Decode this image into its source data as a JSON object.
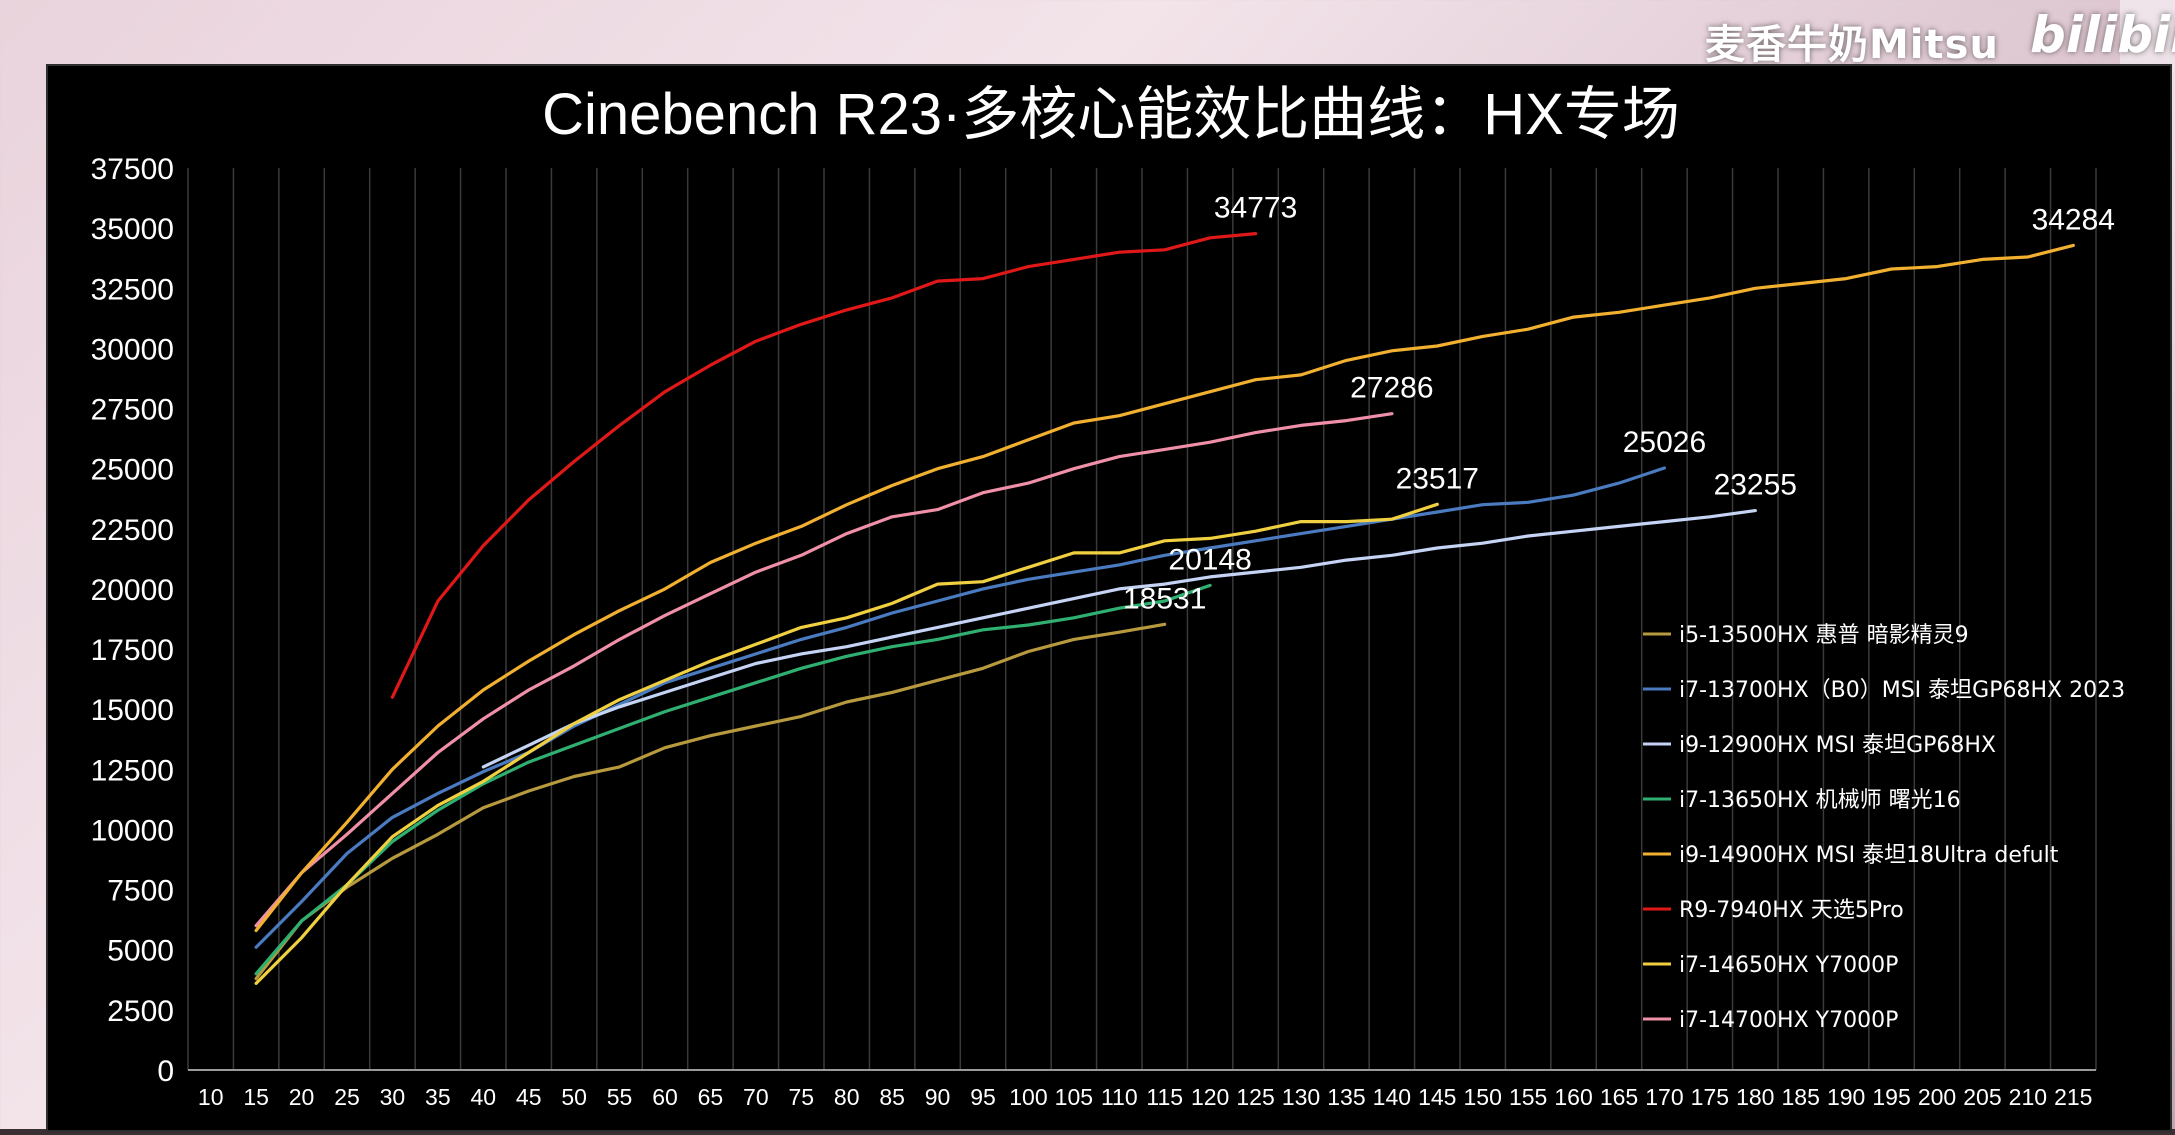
{
  "watermark": {
    "channel": "麦香牛奶Mitsu",
    "brand": "bilibili"
  },
  "chart_data": {
    "type": "line",
    "title": "Cinebench R23·多核心能效比曲线：HX专场",
    "xlabel": "",
    "ylabel": "",
    "xlim": [
      10,
      215
    ],
    "ylim": [
      0,
      37500
    ],
    "x_ticks": [
      10,
      15,
      20,
      25,
      30,
      35,
      40,
      45,
      50,
      55,
      60,
      65,
      70,
      75,
      80,
      85,
      90,
      95,
      100,
      105,
      110,
      115,
      120,
      125,
      130,
      135,
      140,
      145,
      150,
      155,
      160,
      165,
      170,
      175,
      180,
      185,
      190,
      195,
      200,
      205,
      210,
      215
    ],
    "y_ticks": [
      0,
      2500,
      5000,
      7500,
      10000,
      12500,
      15000,
      17500,
      20000,
      22500,
      25000,
      27500,
      30000,
      32500,
      35000,
      37500
    ],
    "grid": "vertical",
    "legend_position": "right",
    "series": [
      {
        "name": "i5-13500HX 惠普 暗影精灵9",
        "color": "#b89a3e",
        "x": [
          15,
          20,
          25,
          30,
          35,
          40,
          45,
          50,
          55,
          60,
          65,
          70,
          75,
          80,
          85,
          90,
          95,
          100,
          105,
          110,
          115
        ],
        "y": [
          3800,
          6200,
          7600,
          8800,
          9800,
          10900,
          11600,
          12200,
          12600,
          13400,
          13900,
          14300,
          14700,
          15300,
          15700,
          16200,
          16700,
          17400,
          17900,
          18200,
          18531
        ],
        "end_label": "18531"
      },
      {
        "name": "i7-13700HX（B0）MSI 泰坦GP68HX 2023",
        "color": "#4a7bc0",
        "x": [
          15,
          20,
          25,
          30,
          35,
          40,
          45,
          50,
          55,
          60,
          65,
          70,
          75,
          80,
          85,
          90,
          95,
          100,
          105,
          110,
          115,
          120,
          125,
          130,
          135,
          140,
          145,
          150,
          155,
          160,
          165,
          170
        ],
        "y": [
          5100,
          7000,
          9000,
          10500,
          11500,
          12400,
          13200,
          14300,
          15200,
          16100,
          16700,
          17300,
          17900,
          18400,
          19000,
          19500,
          20000,
          20400,
          20700,
          21000,
          21400,
          21700,
          22000,
          22300,
          22600,
          22900,
          23200,
          23500,
          23600,
          23900,
          24400,
          25026
        ],
        "end_label": "25026"
      },
      {
        "name": "i9-12900HX MSI 泰坦GP68HX",
        "color": "#c5d4f4",
        "x": [
          40,
          45,
          50,
          55,
          60,
          65,
          70,
          75,
          80,
          85,
          90,
          95,
          100,
          105,
          110,
          115,
          120,
          125,
          130,
          135,
          140,
          145,
          150,
          155,
          160,
          165,
          170,
          175,
          180
        ],
        "y": [
          12600,
          13500,
          14400,
          15100,
          15700,
          16300,
          16900,
          17300,
          17600,
          18000,
          18400,
          18800,
          19200,
          19600,
          20000,
          20200,
          20500,
          20700,
          20900,
          21200,
          21400,
          21700,
          21900,
          22200,
          22400,
          22600,
          22800,
          23000,
          23255
        ],
        "end_label": "23255"
      },
      {
        "name": "i7-13650HX 机械师 曙光16",
        "color": "#2fb070",
        "x": [
          15,
          20,
          25,
          30,
          35,
          40,
          45,
          50,
          55,
          60,
          65,
          70,
          75,
          80,
          85,
          90,
          95,
          100,
          105,
          110,
          115,
          120
        ],
        "y": [
          4000,
          6200,
          7700,
          9500,
          10800,
          11900,
          12800,
          13500,
          14200,
          14900,
          15500,
          16100,
          16700,
          17200,
          17600,
          17900,
          18300,
          18500,
          18800,
          19200,
          19500,
          20148
        ],
        "end_label": "20148"
      },
      {
        "name": "i9-14900HX MSI 泰坦18Ultra defult",
        "color": "#f2b030",
        "x": [
          15,
          20,
          25,
          30,
          35,
          40,
          45,
          50,
          55,
          60,
          65,
          70,
          75,
          80,
          85,
          90,
          95,
          100,
          105,
          110,
          115,
          120,
          125,
          130,
          135,
          140,
          145,
          150,
          155,
          160,
          165,
          170,
          175,
          180,
          185,
          190,
          195,
          200,
          205,
          210,
          215
        ],
        "y": [
          5800,
          8200,
          10300,
          11800,
          13300,
          14600,
          15900,
          17000,
          17900,
          18900,
          19800,
          20700,
          21400,
          22300,
          23000,
          23300,
          24000,
          24400,
          25000,
          25500,
          25800,
          26100,
          26500,
          26800,
          27000,
          27400,
          27800,
          28500,
          29300,
          30000,
          30800,
          31400,
          31800,
          32500,
          32900,
          33300,
          33700,
          34000,
          34200,
          34700,
          34284
        ],
        "end_label": ""
      },
      {
        "name": "R9-7940HX 天选5Pro",
        "color": "#e01818",
        "x": [
          30,
          35,
          40,
          45,
          50,
          55,
          60,
          65,
          70,
          75,
          80,
          85,
          90,
          95,
          100,
          105,
          110,
          115,
          120,
          125
        ],
        "y": [
          15500,
          19500,
          21800,
          23700,
          25300,
          26800,
          28200,
          29300,
          30300,
          31000,
          31600,
          32100,
          32800,
          32900,
          33400,
          33700,
          34000,
          34100,
          34600,
          34773
        ],
        "end_label": "34773"
      },
      {
        "name": "i7-14650HX Y7000P",
        "color": "#f0d040",
        "x": [
          15,
          20,
          25,
          30,
          35,
          40,
          45,
          50,
          55,
          60,
          65,
          70,
          75,
          80,
          85,
          90,
          95,
          100,
          105,
          110,
          115,
          120,
          125,
          130,
          135,
          140,
          145
        ],
        "y": [
          3600,
          5500,
          7700,
          9700,
          11000,
          12000,
          13200,
          14400,
          15400,
          16200,
          17000,
          17700,
          18400,
          18800,
          19400,
          20200,
          20300,
          20900,
          21500,
          21500,
          22000,
          22100,
          22400,
          22800,
          22800,
          22900,
          23517
        ],
        "end_label": "23517"
      },
      {
        "name": "i7-14700HX Y7000P",
        "color": "#f090a8",
        "x": [
          15,
          20,
          25,
          30,
          35,
          40,
          45,
          50,
          55,
          60,
          65,
          70,
          75,
          80,
          85,
          90,
          95,
          100,
          105,
          110,
          115,
          120,
          125,
          130,
          135,
          140
        ],
        "y": [
          6000,
          8200,
          9800,
          11500,
          13200,
          14600,
          15800,
          16800,
          17900,
          18900,
          19800,
          20700,
          21400,
          22300,
          23000,
          23300,
          24000,
          24400,
          25000,
          25500,
          25800,
          26100,
          26500,
          26800,
          27000,
          27286
        ],
        "end_label": "27286"
      },
      {
        "name": "i9-14900HX MSI 泰坦18Ultra defult",
        "color": "#f2b030",
        "x": [
          15,
          20,
          25,
          30,
          35,
          40,
          45,
          50,
          55,
          60,
          65,
          70,
          75,
          80,
          85,
          90,
          95,
          100,
          105,
          110,
          115,
          120,
          125,
          130,
          135,
          140,
          145,
          150,
          155,
          160,
          165,
          170,
          175,
          180,
          185,
          190,
          195,
          200,
          205,
          210,
          215
        ],
        "y": [
          5800,
          8200,
          10300,
          12500,
          14300,
          15800,
          17000,
          18100,
          19100,
          20000,
          21100,
          21900,
          22600,
          23500,
          24300,
          25000,
          25500,
          26200,
          26900,
          27200,
          27700,
          28200,
          28700,
          28900,
          29500,
          29900,
          30100,
          30500,
          30800,
          31300,
          31500,
          31800,
          32100,
          32500,
          32700,
          32900,
          33300,
          33400,
          33700,
          33800,
          34284
        ],
        "end_label": "34284"
      }
    ]
  }
}
